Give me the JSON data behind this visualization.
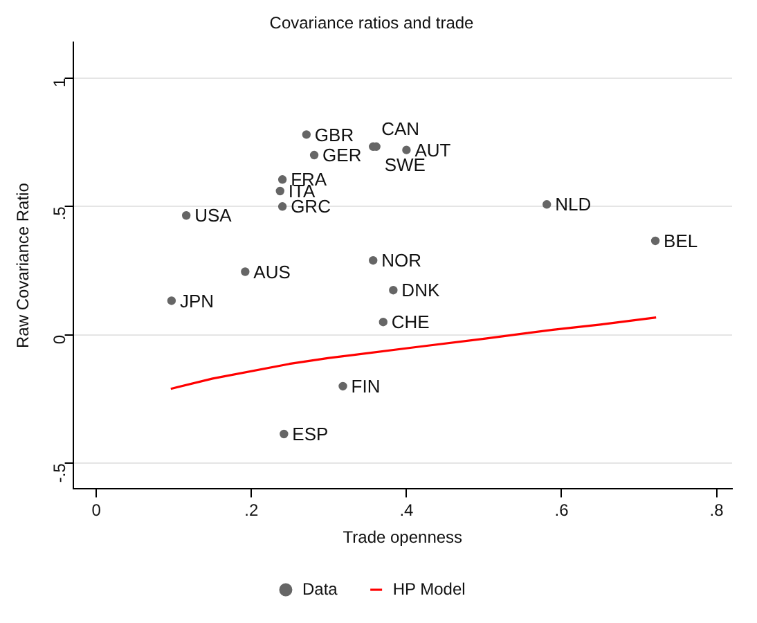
{
  "chart_data": {
    "type": "scatter",
    "title": "Covariance ratios and trade",
    "xlabel": "Trade openness",
    "ylabel": "Raw Covariance Ratio",
    "xlim": [
      -0.03,
      0.82
    ],
    "ylim": [
      -0.6,
      1.14
    ],
    "xticks": [
      0,
      {
        "value": 0.2,
        "label": ".2"
      },
      {
        "value": 0.4,
        "label": ".4"
      },
      {
        "value": 0.6,
        "label": ".6"
      },
      {
        "value": 0.8,
        "label": ".8"
      }
    ],
    "yticks": [
      {
        "value": -0.5,
        "label": "-.5"
      },
      0,
      {
        "value": 0.5,
        "label": ".5"
      },
      1
    ],
    "grid": "y",
    "legend": "bottom",
    "series": [
      {
        "name": "Data",
        "marker": "circle",
        "color": "#666666",
        "x": [
          0.271,
          0.281,
          0.357,
          0.361,
          0.4,
          0.24,
          0.237,
          0.24,
          0.116,
          0.581,
          0.721,
          0.357,
          0.192,
          0.383,
          0.097,
          0.37,
          0.318,
          0.242
        ],
        "values": [
          0.78,
          0.7,
          0.733,
          0.733,
          0.72,
          0.605,
          0.56,
          0.5,
          0.465,
          0.508,
          0.366,
          0.29,
          0.246,
          0.174,
          0.133,
          0.05,
          -0.2,
          -0.386
        ]
      },
      {
        "name": "HP Model",
        "type": "line",
        "marker": "none",
        "color": "#ff0000",
        "x": [
          0.096,
          0.15,
          0.249,
          0.3,
          0.419,
          0.5,
          0.589,
          0.65,
          0.722
        ],
        "values": [
          -0.21,
          -0.17,
          -0.113,
          -0.09,
          -0.045,
          -0.015,
          0.02,
          0.04,
          0.068
        ]
      }
    ],
    "annotations": [
      {
        "text": "GBR",
        "x": 0.271,
        "y": 0.78
      },
      {
        "text": "GER",
        "x": 0.281,
        "y": 0.7
      },
      {
        "text": "CAN",
        "x": 0.357,
        "y": 0.733
      },
      {
        "text": "SWE",
        "x": 0.361,
        "y": 0.733
      },
      {
        "text": "AUT",
        "x": 0.4,
        "y": 0.72
      },
      {
        "text": "FRA",
        "x": 0.24,
        "y": 0.605
      },
      {
        "text": "ITA",
        "x": 0.237,
        "y": 0.56
      },
      {
        "text": "GRC",
        "x": 0.24,
        "y": 0.5
      },
      {
        "text": "USA",
        "x": 0.116,
        "y": 0.465
      },
      {
        "text": "NLD",
        "x": 0.581,
        "y": 0.508
      },
      {
        "text": "BEL",
        "x": 0.721,
        "y": 0.366
      },
      {
        "text": "NOR",
        "x": 0.357,
        "y": 0.29
      },
      {
        "text": "AUS",
        "x": 0.192,
        "y": 0.246
      },
      {
        "text": "DNK",
        "x": 0.383,
        "y": 0.174
      },
      {
        "text": "JPN",
        "x": 0.097,
        "y": 0.133
      },
      {
        "text": "CHE",
        "x": 0.37,
        "y": 0.05
      },
      {
        "text": "FIN",
        "x": 0.318,
        "y": -0.2
      },
      {
        "text": "ESP",
        "x": 0.242,
        "y": -0.386
      }
    ]
  }
}
